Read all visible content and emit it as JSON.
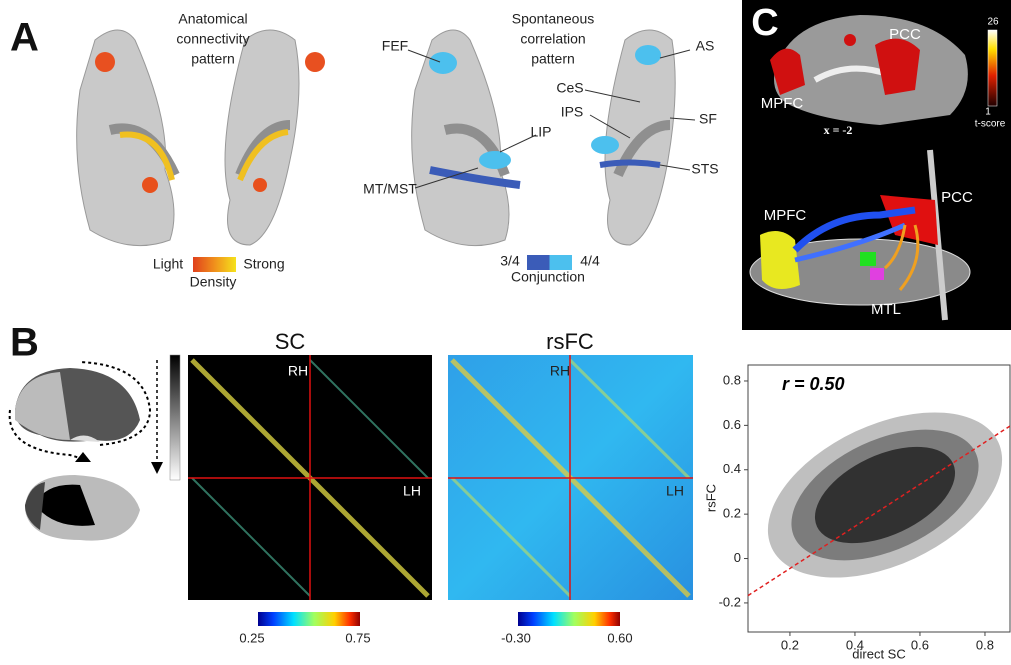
{
  "panel_a": {
    "label": "A",
    "anatomical_title": [
      "Anatomical",
      "connectivity",
      "pattern"
    ],
    "spontaneous_title": [
      "Spontaneous",
      "correlation",
      "pattern"
    ],
    "regions": [
      "FEF",
      "AS",
      "CeS",
      "IPS",
      "SF",
      "LIP",
      "STS",
      "MT/MST"
    ],
    "density_legend": {
      "low": "Light",
      "high": "Strong",
      "title": "Density"
    },
    "conjunction_legend": {
      "low": "3/4",
      "high": "4/4",
      "title": "Conjunction"
    }
  },
  "panel_c": {
    "label": "C",
    "top_labels": [
      "PCC",
      "MPFC"
    ],
    "slice": "x = -2",
    "scale": {
      "max": "26",
      "min": "1",
      "title": "t-score"
    },
    "bottom_labels": [
      "MPFC",
      "PCC",
      "MTL"
    ]
  },
  "panel_b": {
    "label": "B",
    "sc": {
      "title": "SC",
      "hemispheres": [
        "RH",
        "LH"
      ],
      "colorbar": [
        "0.25",
        "0.75"
      ]
    },
    "rsfc": {
      "title": "rsFC",
      "hemispheres": [
        "RH",
        "LH"
      ],
      "colorbar": [
        "-0.30",
        "0.60"
      ]
    },
    "scatter": {
      "annotation": "r = 0.50",
      "x_label": "direct SC",
      "y_label": "rsFC",
      "xlim": [
        0.071,
        0.877
      ],
      "ylim": [
        -0.331,
        0.872
      ],
      "xticks": [
        0.2,
        0.4,
        0.6,
        0.8
      ],
      "yticks": [
        -0.2,
        0,
        0.2,
        0.4,
        0.6,
        0.8
      ],
      "fit": {
        "x": [
          0.071,
          0.877
        ],
        "y": [
          -0.167,
          0.597
        ],
        "color": "#e02020"
      }
    }
  }
}
